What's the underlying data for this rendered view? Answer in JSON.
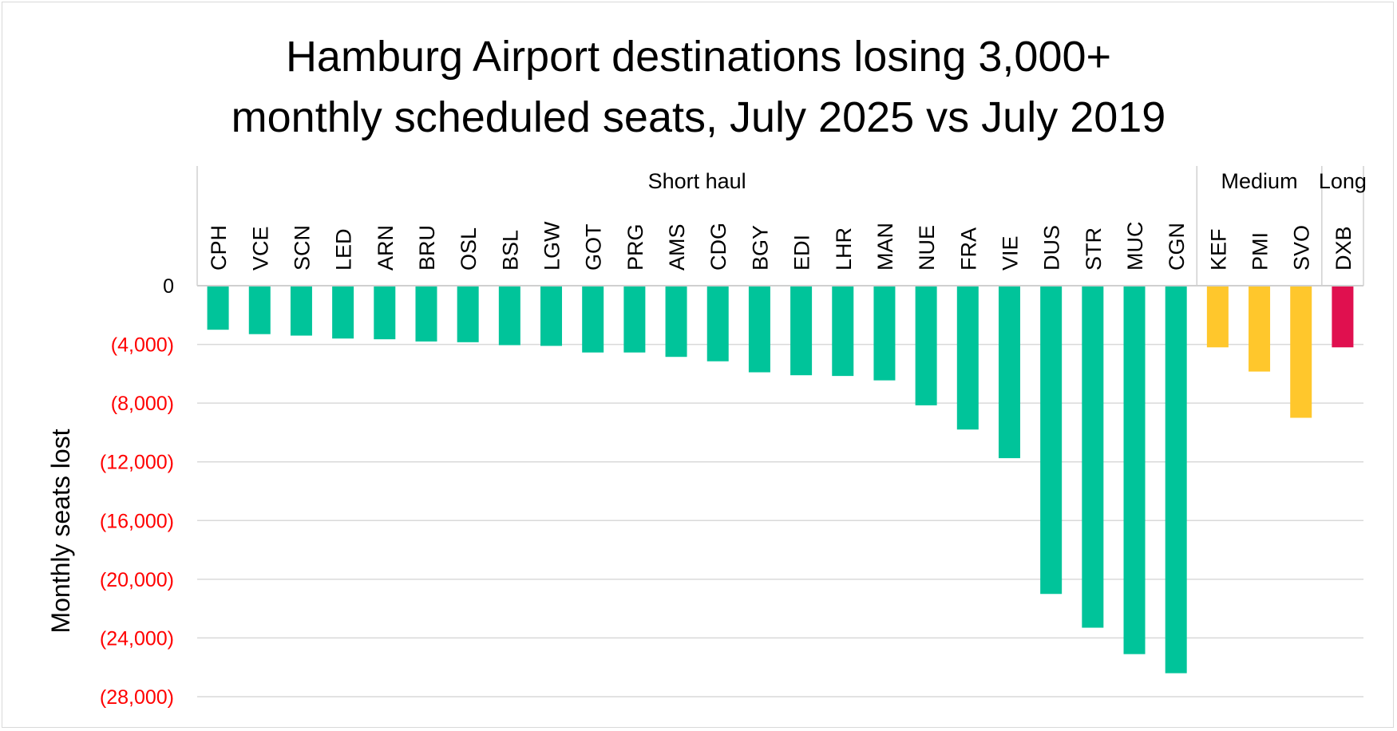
{
  "chart_data": {
    "type": "bar",
    "title": [
      "Hamburg Airport destinations losing 3,000+",
      "monthly scheduled seats, July 2025 vs July 2019"
    ],
    "ylabel": "Monthly seats lost",
    "xlabel": "",
    "ylim": [
      -28000,
      0
    ],
    "yticks": [
      0,
      -4000,
      -8000,
      -12000,
      -16000,
      -20000,
      -24000,
      -28000
    ],
    "ytick_labels": [
      "0",
      "(4,000)",
      "(8,000)",
      "(12,000)",
      "(16,000)",
      "(20,000)",
      "(24,000)",
      "(28,000)"
    ],
    "ytick_colors": {
      "zero": "#000000",
      "negative": "#ff0000"
    },
    "grid": true,
    "groups": [
      {
        "name": "Short haul",
        "color": "#00c49a",
        "categories": [
          "CPH",
          "VCE",
          "SCN",
          "LED",
          "ARN",
          "BRU",
          "OSL",
          "BSL",
          "LGW",
          "GOT",
          "PRG",
          "AMS",
          "CDG",
          "BGY",
          "EDI",
          "LHR",
          "MAN",
          "NUE",
          "FRA",
          "VIE",
          "DUS",
          "STR",
          "MUC",
          "CGN"
        ]
      },
      {
        "name": "Medium",
        "color": "#ffc72c",
        "categories": [
          "KEF",
          "PMI",
          "SVO"
        ]
      },
      {
        "name": "Long",
        "color": "#e0104f",
        "categories": [
          "DXB"
        ]
      }
    ],
    "categories": [
      "CPH",
      "VCE",
      "SCN",
      "LED",
      "ARN",
      "BRU",
      "OSL",
      "BSL",
      "LGW",
      "GOT",
      "PRG",
      "AMS",
      "CDG",
      "BGY",
      "EDI",
      "LHR",
      "MAN",
      "NUE",
      "FRA",
      "VIE",
      "DUS",
      "STR",
      "MUC",
      "CGN",
      "KEF",
      "PMI",
      "SVO",
      "DXB"
    ],
    "values": [
      -3000,
      -3300,
      -3400,
      -3600,
      -3650,
      -3800,
      -3850,
      -4050,
      -4100,
      -4550,
      -4550,
      -4850,
      -5150,
      -5900,
      -6100,
      -6150,
      -6450,
      -8150,
      -9800,
      -11750,
      -21000,
      -23300,
      -25100,
      -26400,
      -4200,
      -5850,
      -9000,
      -4200
    ]
  }
}
